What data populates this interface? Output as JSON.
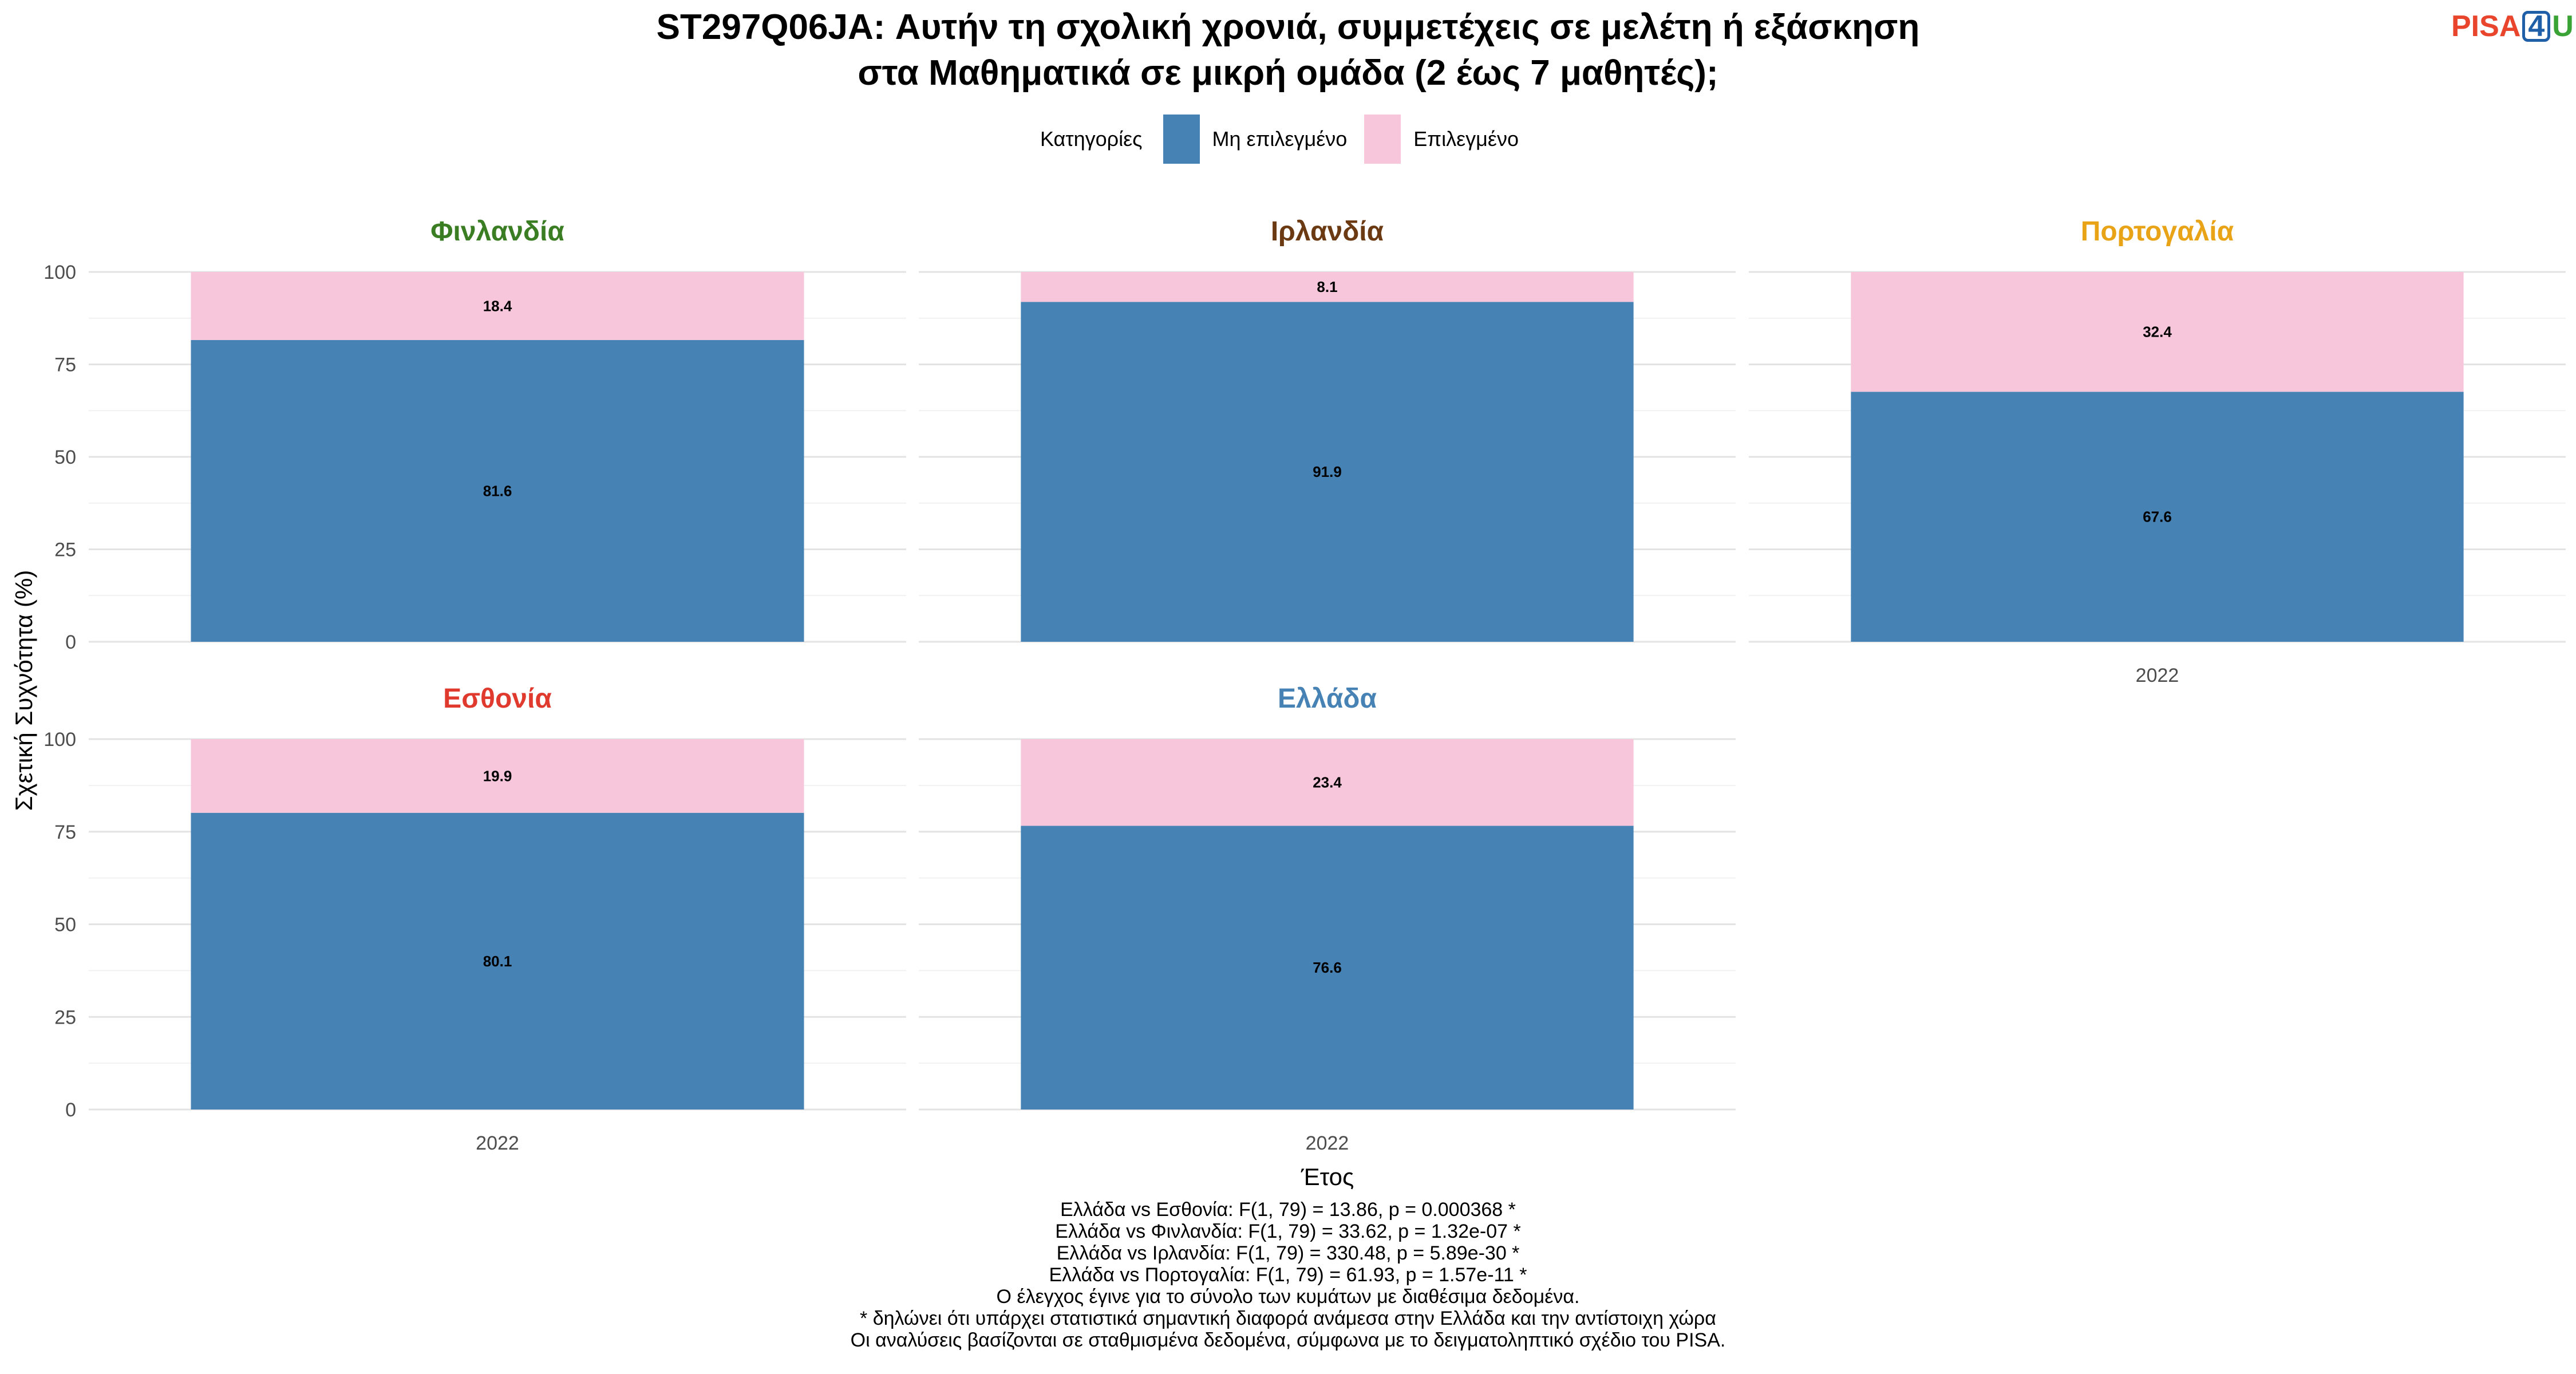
{
  "title_lines": [
    "ST297Q06JA: Αυτήν τη σχολική χρονιά, συμμετέχεις σε μελέτη ή εξάσκηση",
    "στα Μαθηματικά σε μικρή ομάδα (2 έως 7 μαθητές);"
  ],
  "logo": {
    "part1": "PISA",
    "part2": "4",
    "part3": "U"
  },
  "legend": {
    "title": "Κατηγορίες",
    "items": [
      {
        "label": "Μη επιλεγμένο",
        "color": "#4682b4"
      },
      {
        "label": "Επιλεγμένο",
        "color": "#f7c6db"
      }
    ]
  },
  "chart_data": {
    "type": "bar",
    "stacked": true,
    "ylabel": "Σχετική Συχνότητα (%)",
    "xlabel": "Έτος",
    "ylim": [
      0,
      100
    ],
    "yticks": [
      0,
      25,
      50,
      75,
      100
    ],
    "grid": true,
    "legend_position": "top",
    "series_names": [
      "Μη επιλεγμένο",
      "Επιλεγμένο"
    ],
    "series_colors": [
      "#4682b4",
      "#f7c6db"
    ],
    "panels": [
      {
        "country": "Φινλανδία",
        "color": "#3a7d22",
        "year": "2022",
        "values": [
          81.6,
          18.4
        ],
        "labels": [
          "81.6",
          "18.4"
        ],
        "show_xaxis": false
      },
      {
        "country": "Ιρλανδία",
        "color": "#6b3a12",
        "year": "2022",
        "values": [
          91.9,
          8.1
        ],
        "labels": [
          "91.9",
          "8.1"
        ],
        "show_xaxis": false
      },
      {
        "country": "Πορτογαλία",
        "color": "#e8a317",
        "year": "2022",
        "values": [
          67.6,
          32.4
        ],
        "labels": [
          "67.6",
          "32.4"
        ],
        "show_xaxis": true
      },
      {
        "country": "Εσθονία",
        "color": "#e03a2f",
        "year": "2022",
        "values": [
          80.1,
          19.9
        ],
        "labels": [
          "80.1",
          "19.9"
        ],
        "show_xaxis": true
      },
      {
        "country": "Ελλάδα",
        "color": "#4682b4",
        "year": "2022",
        "values": [
          76.6,
          23.4
        ],
        "labels": [
          "76.6",
          "23.4"
        ],
        "show_xaxis": true
      }
    ]
  },
  "footer_lines": [
    "Ελλάδα vs Εσθονία: F(1, 79) = 13.86, p = 0.000368 *",
    "Ελλάδα vs Φινλανδία: F(1, 79) = 33.62, p = 1.32e-07 *",
    "Ελλάδα vs Ιρλανδία: F(1, 79) = 330.48, p = 5.89e-30 *",
    "Ελλάδα vs Πορτογαλία: F(1, 79) = 61.93, p = 1.57e-11 *",
    "Ο έλεγχος έγινε για το σύνολο των κυμάτων με διαθέσιμα δεδομένα.",
    "* δηλώνει ότι υπάρχει στατιστικά σημαντική διαφορά ανάμεσα στην Ελλάδα και την αντίστοιχη χώρα",
    "Οι αναλύσεις βασίζονται σε σταθμισμένα δεδομένα, σύμφωνα με το δειγματοληπτικό σχέδιο του PISA."
  ]
}
